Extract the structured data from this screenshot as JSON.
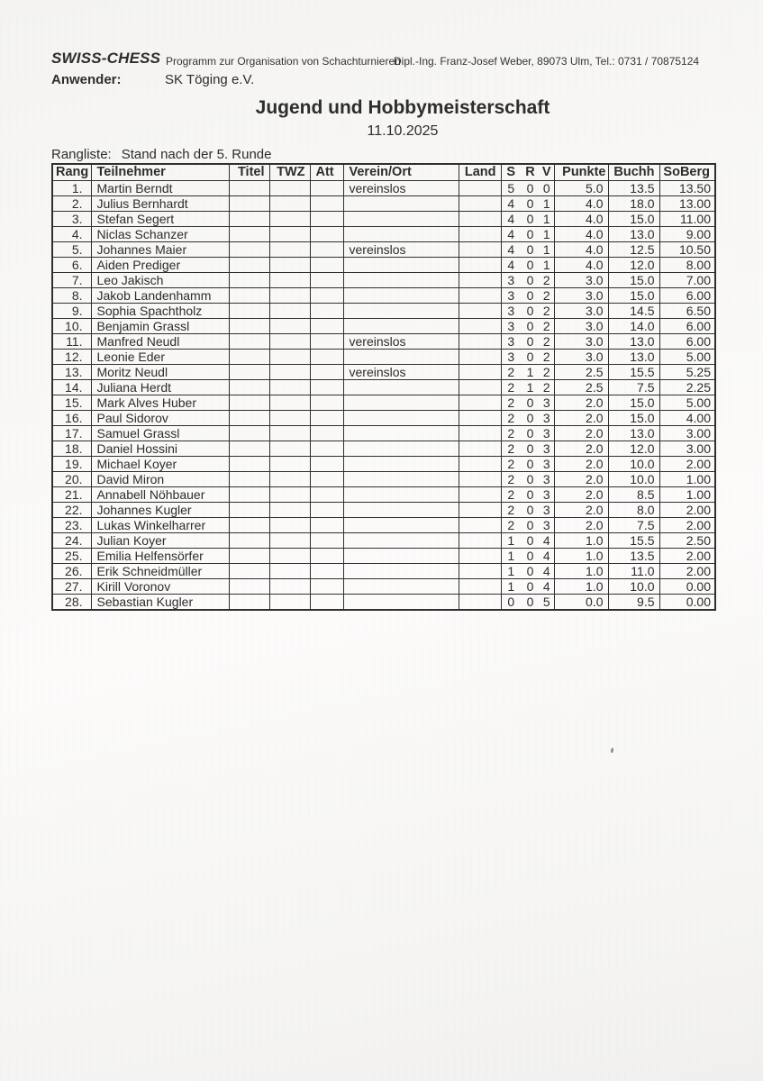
{
  "header": {
    "brand": "SWISS-CHESS",
    "program_line": "Programm zur Organisation von Schachturnieren",
    "contact_line": "Dipl.-Ing. Franz-Josef Weber, 89073 Ulm, Tel.: 0731 / 70875124",
    "anwender_label": "Anwender:",
    "anwender_value": "SK Töging e.V."
  },
  "title": "Jugend und Hobbymeisterschaft",
  "date": "11.10.2025",
  "ranking": {
    "label": "Rangliste:",
    "status": "Stand nach der 5. Runde"
  },
  "table": {
    "columns": [
      "Rang",
      "Teilnehmer",
      "Titel",
      "TWZ",
      "Att",
      "Verein/Ort",
      "Land",
      "S",
      "R",
      "V",
      "Punkte",
      "Buchh",
      "SoBerg"
    ],
    "rows": [
      [
        "1.",
        "Martin Berndt",
        "",
        "",
        "",
        "vereinslos",
        "",
        "5",
        "0",
        "0",
        "5.0",
        "13.5",
        "13.50"
      ],
      [
        "2.",
        "Julius Bernhardt",
        "",
        "",
        "",
        "",
        "",
        "4",
        "0",
        "1",
        "4.0",
        "18.0",
        "13.00"
      ],
      [
        "3.",
        "Stefan Segert",
        "",
        "",
        "",
        "",
        "",
        "4",
        "0",
        "1",
        "4.0",
        "15.0",
        "11.00"
      ],
      [
        "4.",
        "Niclas Schanzer",
        "",
        "",
        "",
        "",
        "",
        "4",
        "0",
        "1",
        "4.0",
        "13.0",
        "9.00"
      ],
      [
        "5.",
        "Johannes Maier",
        "",
        "",
        "",
        "vereinslos",
        "",
        "4",
        "0",
        "1",
        "4.0",
        "12.5",
        "10.50"
      ],
      [
        "6.",
        "Aiden Prediger",
        "",
        "",
        "",
        "",
        "",
        "4",
        "0",
        "1",
        "4.0",
        "12.0",
        "8.00"
      ],
      [
        "7.",
        "Leo Jakisch",
        "",
        "",
        "",
        "",
        "",
        "3",
        "0",
        "2",
        "3.0",
        "15.0",
        "7.00"
      ],
      [
        "8.",
        "Jakob Landenhamm",
        "",
        "",
        "",
        "",
        "",
        "3",
        "0",
        "2",
        "3.0",
        "15.0",
        "6.00"
      ],
      [
        "9.",
        "Sophia Spachtholz",
        "",
        "",
        "",
        "",
        "",
        "3",
        "0",
        "2",
        "3.0",
        "14.5",
        "6.50"
      ],
      [
        "10.",
        "Benjamin Grassl",
        "",
        "",
        "",
        "",
        "",
        "3",
        "0",
        "2",
        "3.0",
        "14.0",
        "6.00"
      ],
      [
        "11.",
        "Manfred Neudl",
        "",
        "",
        "",
        "vereinslos",
        "",
        "3",
        "0",
        "2",
        "3.0",
        "13.0",
        "6.00"
      ],
      [
        "12.",
        "Leonie Eder",
        "",
        "",
        "",
        "",
        "",
        "3",
        "0",
        "2",
        "3.0",
        "13.0",
        "5.00"
      ],
      [
        "13.",
        "Moritz Neudl",
        "",
        "",
        "",
        "vereinslos",
        "",
        "2",
        "1",
        "2",
        "2.5",
        "15.5",
        "5.25"
      ],
      [
        "14.",
        "Juliana Herdt",
        "",
        "",
        "",
        "",
        "",
        "2",
        "1",
        "2",
        "2.5",
        "7.5",
        "2.25"
      ],
      [
        "15.",
        "Mark Alves Huber",
        "",
        "",
        "",
        "",
        "",
        "2",
        "0",
        "3",
        "2.0",
        "15.0",
        "5.00"
      ],
      [
        "16.",
        "Paul Sidorov",
        "",
        "",
        "",
        "",
        "",
        "2",
        "0",
        "3",
        "2.0",
        "15.0",
        "4.00"
      ],
      [
        "17.",
        "Samuel Grassl",
        "",
        "",
        "",
        "",
        "",
        "2",
        "0",
        "3",
        "2.0",
        "13.0",
        "3.00"
      ],
      [
        "18.",
        "Daniel Hossini",
        "",
        "",
        "",
        "",
        "",
        "2",
        "0",
        "3",
        "2.0",
        "12.0",
        "3.00"
      ],
      [
        "19.",
        "Michael Koyer",
        "",
        "",
        "",
        "",
        "",
        "2",
        "0",
        "3",
        "2.0",
        "10.0",
        "2.00"
      ],
      [
        "20.",
        "David Miron",
        "",
        "",
        "",
        "",
        "",
        "2",
        "0",
        "3",
        "2.0",
        "10.0",
        "1.00"
      ],
      [
        "21.",
        "Annabell Nöhbauer",
        "",
        "",
        "",
        "",
        "",
        "2",
        "0",
        "3",
        "2.0",
        "8.5",
        "1.00"
      ],
      [
        "22.",
        "Johannes Kugler",
        "",
        "",
        "",
        "",
        "",
        "2",
        "0",
        "3",
        "2.0",
        "8.0",
        "2.00"
      ],
      [
        "23.",
        "Lukas Winkelharrer",
        "",
        "",
        "",
        "",
        "",
        "2",
        "0",
        "3",
        "2.0",
        "7.5",
        "2.00"
      ],
      [
        "24.",
        "Julian Koyer",
        "",
        "",
        "",
        "",
        "",
        "1",
        "0",
        "4",
        "1.0",
        "15.5",
        "2.50"
      ],
      [
        "25.",
        "Emilia Helfensörfer",
        "",
        "",
        "",
        "",
        "",
        "1",
        "0",
        "4",
        "1.0",
        "13.5",
        "2.00"
      ],
      [
        "26.",
        "Erik Schneidmüller",
        "",
        "",
        "",
        "",
        "",
        "1",
        "0",
        "4",
        "1.0",
        "11.0",
        "2.00"
      ],
      [
        "27.",
        "Kirill Voronov",
        "",
        "",
        "",
        "",
        "",
        "1",
        "0",
        "4",
        "1.0",
        "10.0",
        "0.00"
      ],
      [
        "28.",
        "Sebastian Kugler",
        "",
        "",
        "",
        "",
        "",
        "0",
        "0",
        "5",
        "0.0",
        "9.5",
        "0.00"
      ]
    ]
  },
  "colors": {
    "text": "#2d2d2d",
    "border": "#303030",
    "paper": "#f6f5f3"
  }
}
